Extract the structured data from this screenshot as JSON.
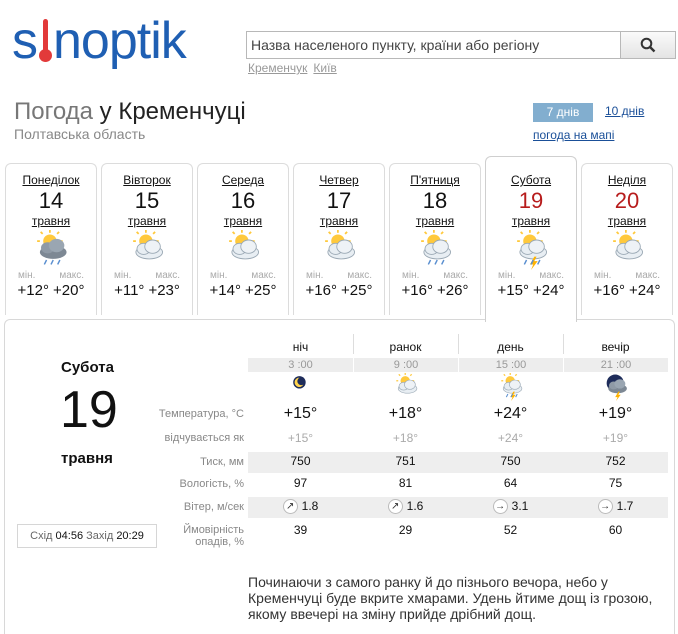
{
  "header": {
    "logo": {
      "pre": "s",
      "post": "noptik"
    },
    "search_placeholder": "Назва населеного пункту, країни або регіону",
    "recent": [
      "Кременчук",
      "Київ"
    ]
  },
  "location": {
    "title_prefix": "Погода",
    "title_main": "у Кременчуці",
    "region": "Полтавська область"
  },
  "nav": {
    "tab_7": "7 днів",
    "tab_10": "10 днів",
    "map": "погода на мапі"
  },
  "days": [
    {
      "name": "Понеділок",
      "num": "14",
      "month": "травня",
      "min_label": "мін.",
      "max_label": "макс.",
      "min": "+12°",
      "max": "+20°",
      "icon": "cloud-sun-rain-icon",
      "red": false
    },
    {
      "name": "Вівторок",
      "num": "15",
      "month": "травня",
      "min_label": "мін.",
      "max_label": "макс.",
      "min": "+11°",
      "max": "+23°",
      "icon": "sun-cloud-icon",
      "red": false
    },
    {
      "name": "Середа",
      "num": "16",
      "month": "травня",
      "min_label": "мін.",
      "max_label": "макс.",
      "min": "+14°",
      "max": "+25°",
      "icon": "sun-cloud-icon",
      "red": false
    },
    {
      "name": "Четвер",
      "num": "17",
      "month": "травня",
      "min_label": "мін.",
      "max_label": "макс.",
      "min": "+16°",
      "max": "+25°",
      "icon": "sun-cloud-icon",
      "red": false
    },
    {
      "name": "П'ятниця",
      "num": "18",
      "month": "травня",
      "min_label": "мін.",
      "max_label": "макс.",
      "min": "+16°",
      "max": "+26°",
      "icon": "sun-cloud-rain-icon",
      "red": false
    },
    {
      "name": "Субота",
      "num": "19",
      "month": "травня",
      "min_label": "мін.",
      "max_label": "макс.",
      "min": "+15°",
      "max": "+24°",
      "icon": "sun-cloud-storm-icon",
      "red": true
    },
    {
      "name": "Неділя",
      "num": "20",
      "month": "травня",
      "min_label": "мін.",
      "max_label": "макс.",
      "min": "+16°",
      "max": "+24°",
      "icon": "sun-cloud-icon",
      "red": true
    }
  ],
  "selected": {
    "name": "Субота",
    "num": "19",
    "month": "травня"
  },
  "sun": {
    "rise_label": "Схід",
    "rise": "04:56",
    "set_label": "Захід",
    "set": "20:29"
  },
  "rows": {
    "temp": "Температура, °C",
    "feels": "відчувається як",
    "pressure": "Тиск, мм",
    "humidity": "Вологість, %",
    "wind": "Вітер, м/сек",
    "precip_1": "Ймовірність",
    "precip_2": "опадів, %"
  },
  "periods": [
    {
      "name": "ніч",
      "time": "3 :00",
      "icon": "moon-cloud-icon",
      "temp": "+15°",
      "feels": "+15°",
      "pressure": "750",
      "humidity": "97",
      "wind_dir": "↗",
      "wind": "1.8",
      "precip": "39"
    },
    {
      "name": "ранок",
      "time": "9 :00",
      "icon": "sun-cloud-icon",
      "temp": "+18°",
      "feels": "+18°",
      "pressure": "751",
      "humidity": "81",
      "wind_dir": "↗",
      "wind": "1.6",
      "precip": "29"
    },
    {
      "name": "день",
      "time": "15 :00",
      "icon": "sun-cloud-storm-icon",
      "temp": "+24°",
      "feels": "+24°",
      "pressure": "750",
      "humidity": "64",
      "wind_dir": "→",
      "wind": "3.1",
      "precip": "52"
    },
    {
      "name": "вечір",
      "time": "21 :00",
      "icon": "cloud-storm-icon",
      "temp": "+19°",
      "feels": "+19°",
      "pressure": "752",
      "humidity": "75",
      "wind_dir": "→",
      "wind": "1.7",
      "precip": "60"
    }
  ],
  "description": "Починаючи з самого ранку й до пізнього вечора, небо у Кременчуці буде вкрите хмарами. Удень йтиме дощ із грозою, якому ввечері на зміну прийде дрібний дощ."
}
